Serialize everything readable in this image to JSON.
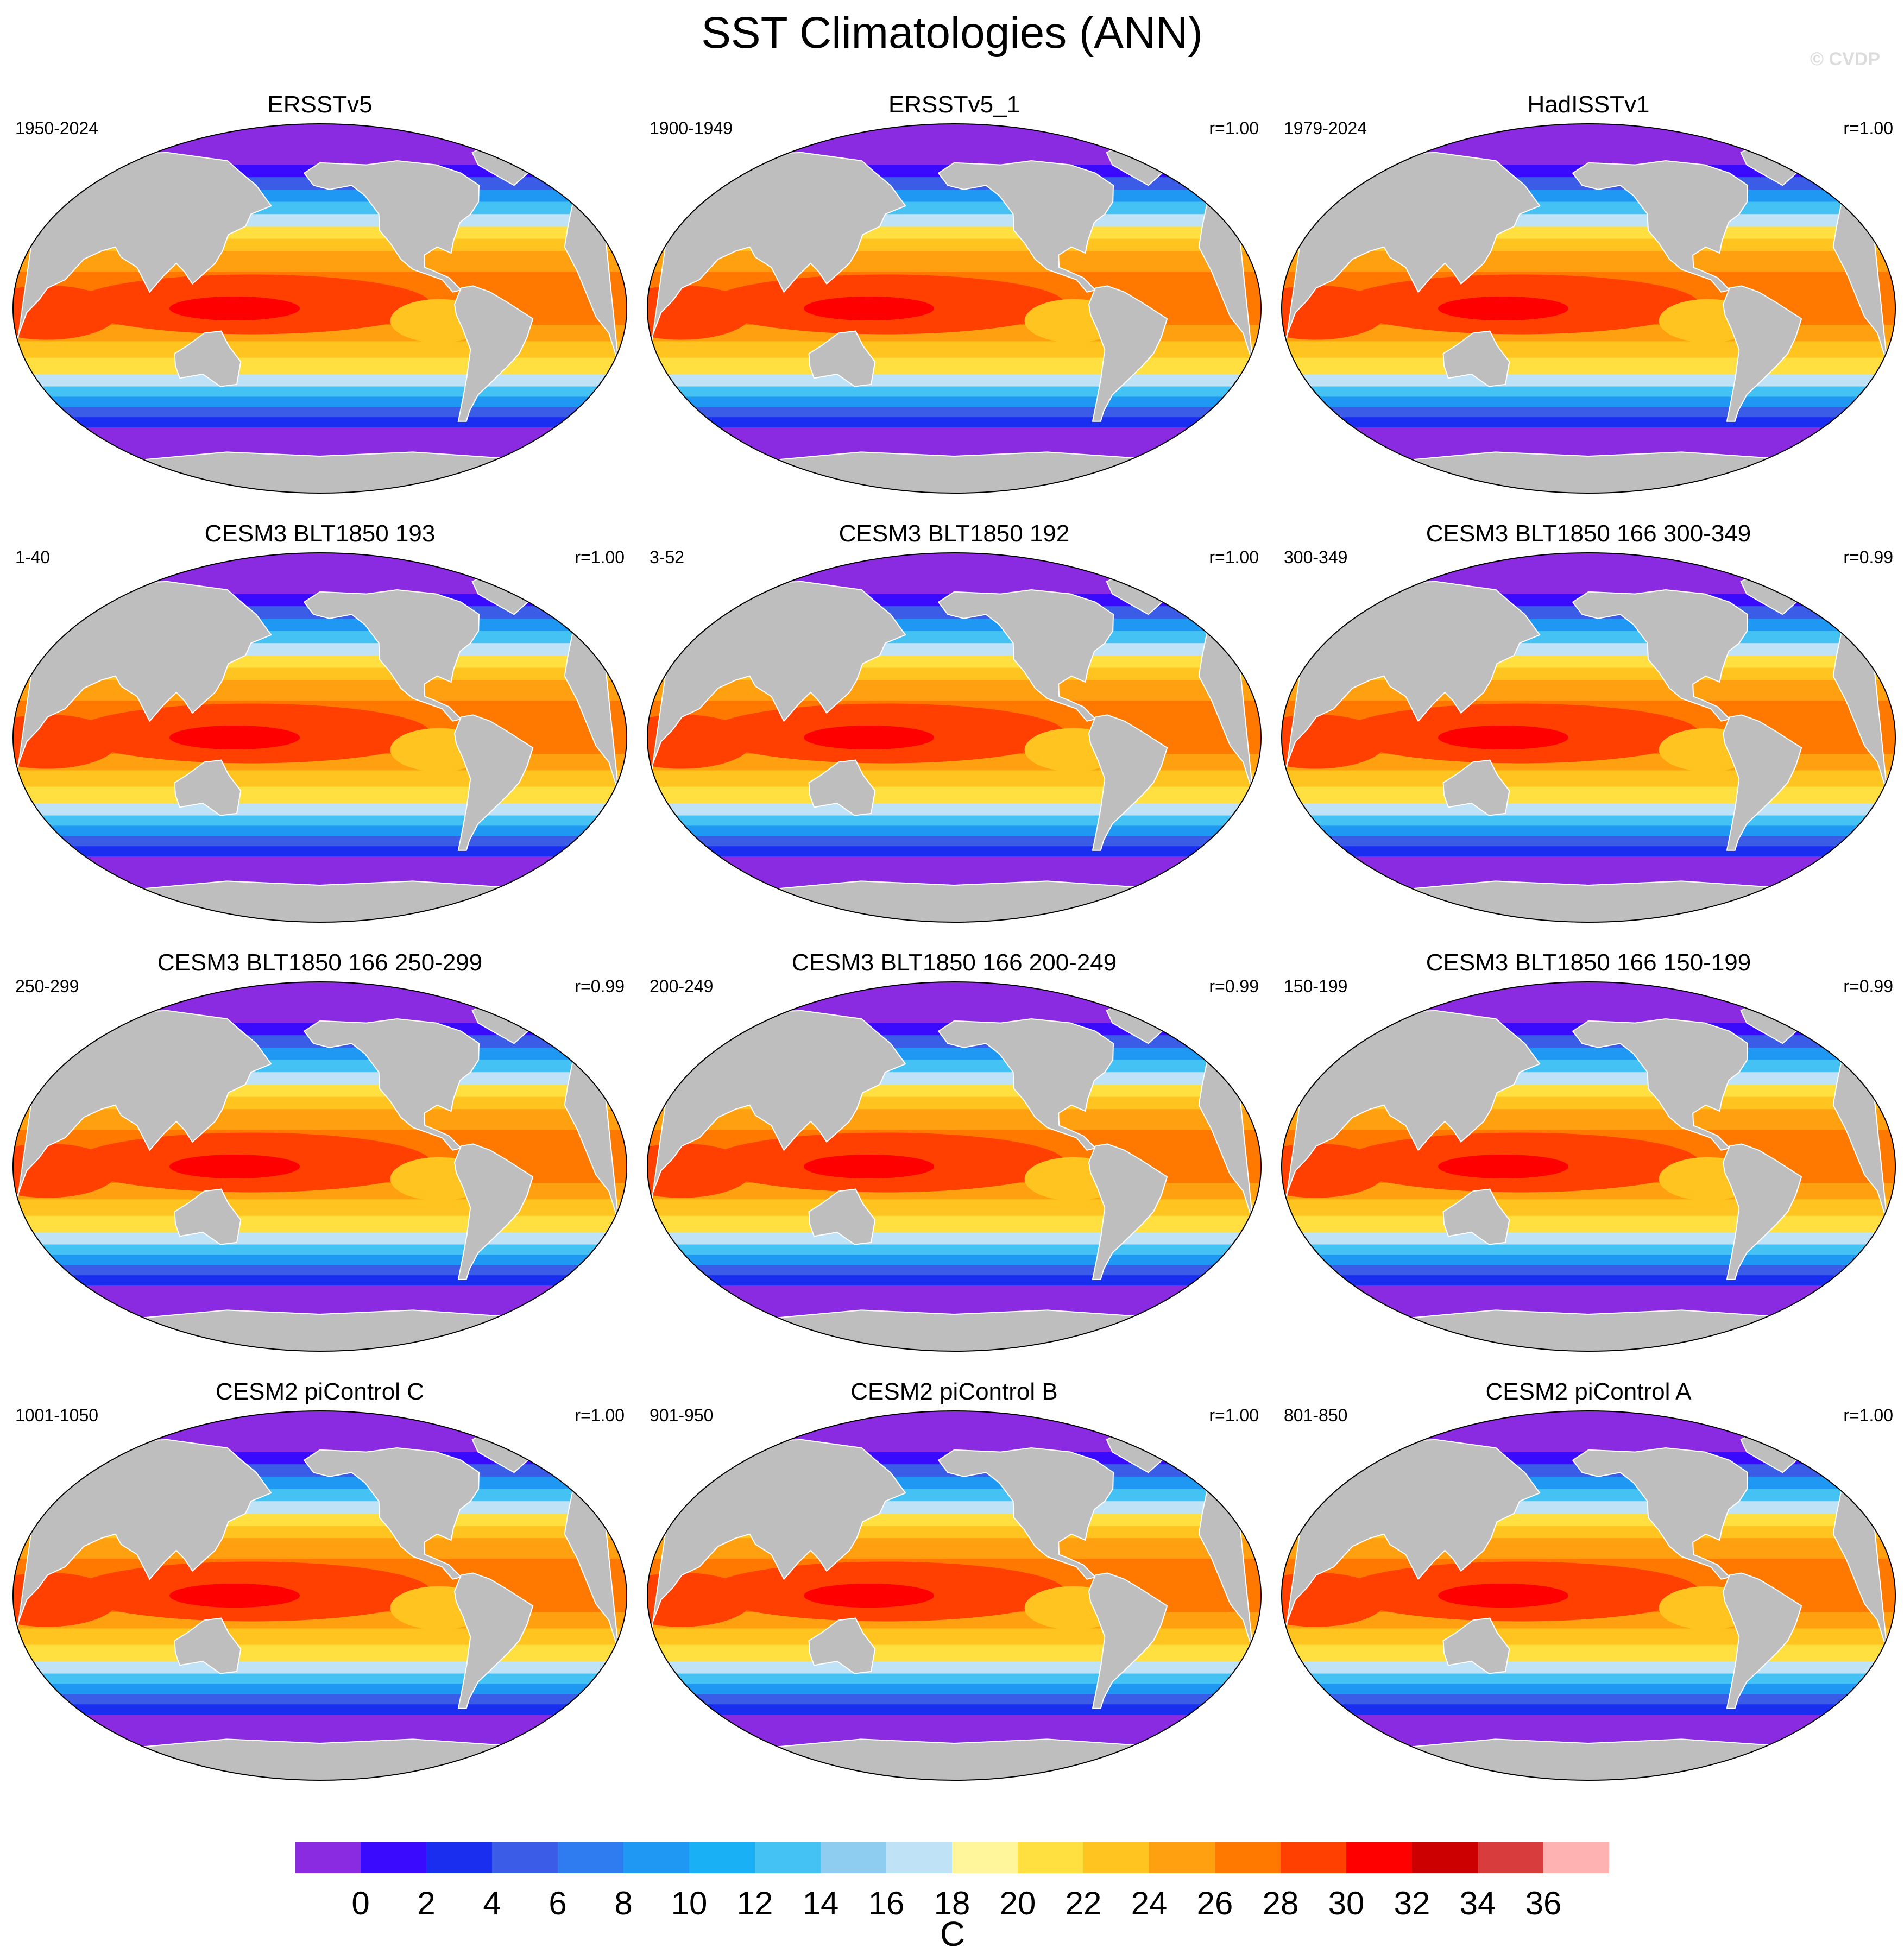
{
  "figure": {
    "title": "SST Climatologies (ANN)",
    "watermark": "© CVDP"
  },
  "panels": [
    {
      "title": "ERSSTv5",
      "period": "1950-2024",
      "corr": ""
    },
    {
      "title": "ERSSTv5_1",
      "period": "1900-1949",
      "corr": "r=1.00"
    },
    {
      "title": "HadISSTv1",
      "period": "1979-2024",
      "corr": "r=1.00"
    },
    {
      "title": "CESM3 BLT1850 193",
      "period": "1-40",
      "corr": "r=1.00"
    },
    {
      "title": "CESM3 BLT1850 192",
      "period": "3-52",
      "corr": "r=1.00"
    },
    {
      "title": "CESM3 BLT1850 166 300-349",
      "period": "300-349",
      "corr": "r=0.99"
    },
    {
      "title": "CESM3 BLT1850 166 250-299",
      "period": "250-299",
      "corr": "r=0.99"
    },
    {
      "title": "CESM3 BLT1850 166 200-249",
      "period": "200-249",
      "corr": "r=0.99"
    },
    {
      "title": "CESM3 BLT1850 166 150-199",
      "period": "150-199",
      "corr": "r=0.99"
    },
    {
      "title": "CESM2 piControl C",
      "period": "1001-1050",
      "corr": "r=1.00"
    },
    {
      "title": "CESM2 piControl B",
      "period": "901-950",
      "corr": "r=1.00"
    },
    {
      "title": "CESM2 piControl A",
      "period": "801-850",
      "corr": "r=1.00"
    }
  ],
  "colorbar": {
    "label": "C",
    "ticks": [
      "0",
      "2",
      "4",
      "6",
      "8",
      "10",
      "12",
      "14",
      "16",
      "18",
      "20",
      "22",
      "24",
      "26",
      "28",
      "30",
      "32",
      "34",
      "36"
    ],
    "colors": [
      "#8a2be2",
      "#3a0aff",
      "#1a2ef0",
      "#3a5ce6",
      "#2f7cf0",
      "#1e98f2",
      "#19b0f5",
      "#45c2f4",
      "#8ecdf0",
      "#bfe2f7",
      "#fff59a",
      "#ffe040",
      "#ffc420",
      "#ffa010",
      "#ff7800",
      "#ff4000",
      "#ff0000",
      "#cc0000",
      "#d93c3c",
      "#ffb2b2"
    ]
  },
  "land_color": "#bebebe",
  "map": {
    "projection": "Robinson",
    "field": "sea surface temperature"
  }
}
